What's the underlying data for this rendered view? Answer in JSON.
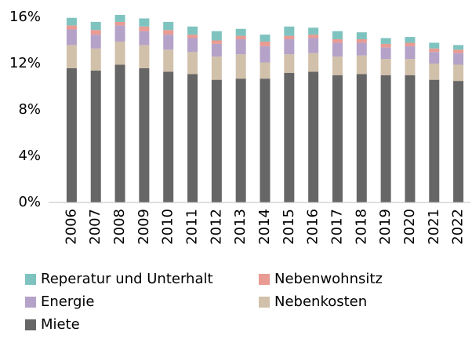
{
  "chart_data": {
    "type": "stacked_bar",
    "categories": [
      "2006",
      "2007",
      "2008",
      "2009",
      "2010",
      "2011",
      "2012",
      "2013",
      "2014",
      "2015",
      "2016",
      "2017",
      "2018",
      "2019",
      "2020",
      "2021",
      "2022"
    ],
    "series": [
      {
        "name": "Miete",
        "color": "#666666",
        "values": [
          11.6,
          11.4,
          11.9,
          11.6,
          11.3,
          11.1,
          10.6,
          10.7,
          10.7,
          11.2,
          11.3,
          11.0,
          11.1,
          11.0,
          11.0,
          10.6,
          10.5
        ]
      },
      {
        "name": "Nebenkosten",
        "color": "#d1c0aa",
        "values": [
          2.0,
          1.9,
          2.0,
          2.0,
          1.9,
          1.9,
          2.0,
          2.1,
          1.4,
          1.6,
          1.6,
          1.6,
          1.6,
          1.4,
          1.4,
          1.4,
          1.4
        ]
      },
      {
        "name": "Energie",
        "color": "#b4a2c8",
        "values": [
          1.35,
          1.2,
          1.4,
          1.2,
          1.3,
          1.2,
          1.1,
          1.3,
          1.4,
          1.3,
          1.3,
          1.2,
          1.1,
          1.0,
          1.1,
          1.0,
          1.0
        ]
      },
      {
        "name": "Nebenwohnsitz",
        "color": "#e99a92",
        "values": [
          0.35,
          0.4,
          0.3,
          0.4,
          0.4,
          0.3,
          0.3,
          0.3,
          0.4,
          0.3,
          0.3,
          0.3,
          0.3,
          0.3,
          0.3,
          0.3,
          0.3
        ]
      },
      {
        "name": "Reperatur und Unterhalt",
        "color": "#7ec3bf",
        "values": [
          0.65,
          0.7,
          0.6,
          0.7,
          0.7,
          0.7,
          0.8,
          0.6,
          0.6,
          0.8,
          0.6,
          0.7,
          0.6,
          0.5,
          0.5,
          0.5,
          0.4
        ]
      }
    ],
    "ylim": [
      0,
      16
    ],
    "yticks": [
      {
        "value": 0,
        "label": "0%"
      },
      {
        "value": 4,
        "label": "4%"
      },
      {
        "value": 8,
        "label": "8%"
      },
      {
        "value": 12,
        "label": "12%"
      },
      {
        "value": 16,
        "label": "16%"
      }
    ],
    "grid": false,
    "legend": "bottom"
  }
}
